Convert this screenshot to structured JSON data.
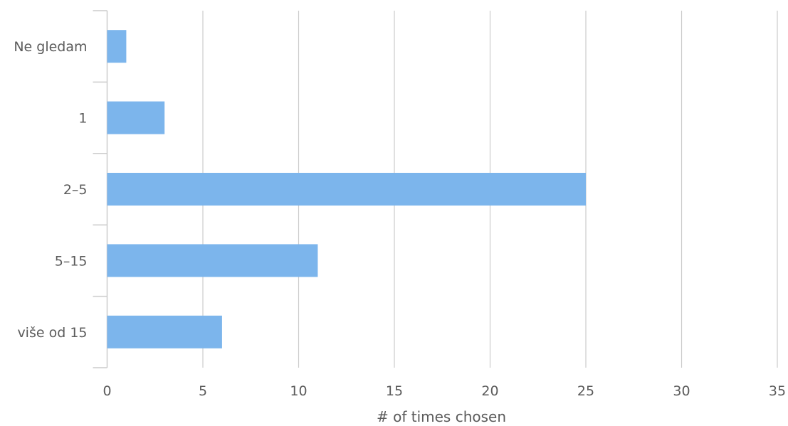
{
  "chart_data": {
    "type": "bar",
    "orientation": "horizontal",
    "categories": [
      "Ne gledam",
      "1",
      "2–5",
      "5–15",
      "više od 15"
    ],
    "values": [
      1,
      3,
      25,
      11,
      6
    ],
    "xlabel": "# of times chosen",
    "xlim": [
      0,
      35
    ],
    "xticks": [
      0,
      5,
      10,
      15,
      20,
      25,
      30,
      35
    ],
    "grid": true,
    "colors": {
      "bar": "#7cb5ec",
      "grid": "#cccccc",
      "axis": "#cccccc",
      "text": "#5b5b5b"
    }
  }
}
